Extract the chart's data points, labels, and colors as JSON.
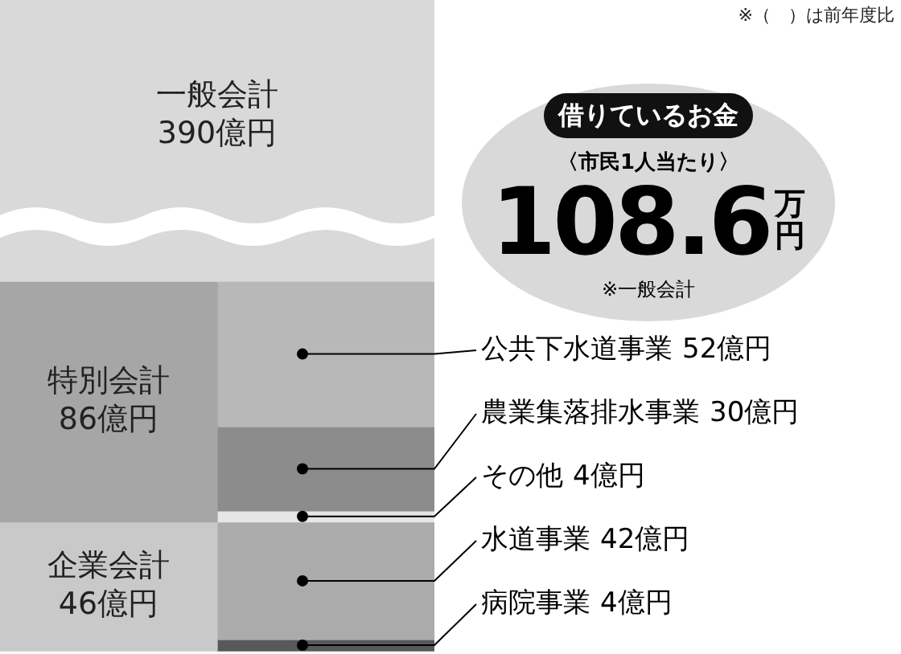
{
  "chart_data": {
    "type": "other",
    "categories": [
      "一般会計",
      "特別会計",
      "企業会計"
    ],
    "values": [
      390,
      86,
      46
    ],
    "colors": [
      "#d9d9d9",
      "#a6a6a6",
      "#c9c9c9"
    ],
    "value_labels": [
      "390億円",
      "86億円",
      "46億円"
    ],
    "series": [
      {
        "name": "公共下水道事業",
        "colors": [
          null,
          "#b8b8b8",
          null
        ],
        "values": [
          null,
          52,
          null
        ],
        "value_labels": [
          null,
          "52億円",
          null
        ]
      },
      {
        "name": "農業集落排水事業",
        "colors": [
          null,
          "#8c8c8c",
          null
        ],
        "values": [
          null,
          30,
          null
        ],
        "value_labels": [
          null,
          "30億円",
          null
        ]
      },
      {
        "name": "その他",
        "colors": [
          null,
          "#e6e6e6",
          null
        ],
        "values": [
          null,
          4,
          null
        ],
        "value_labels": [
          null,
          "4億円",
          null
        ]
      },
      {
        "name": "水道事業",
        "colors": [
          null,
          null,
          "#ababab"
        ],
        "values": [
          null,
          null,
          42
        ],
        "value_labels": [
          null,
          null,
          "42億円"
        ]
      },
      {
        "name": "病院事業",
        "colors": [
          null,
          null,
          "#595959"
        ],
        "values": [
          null,
          null,
          4
        ],
        "value_labels": [
          null,
          null,
          "4億円"
        ]
      }
    ],
    "annotations": [
      "※（　）は前年度比",
      "借りているお金",
      "〈市民1人当たり〉",
      "108.6",
      "万円",
      "※一般会計"
    ]
  }
}
